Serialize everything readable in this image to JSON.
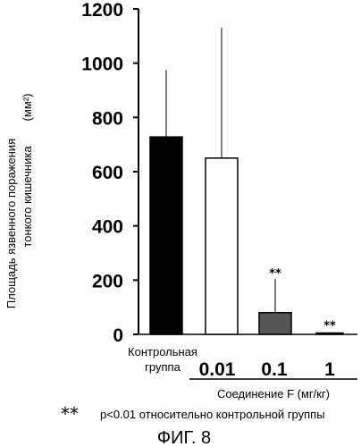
{
  "chart_data": {
    "type": "bar",
    "ylabel_line1": "Площадь язвенного поражения",
    "ylabel_line2": "тонкого кишечника",
    "ylabel_unit": "(мм²)",
    "ylim": [
      0,
      1200
    ],
    "yticks": [
      "0",
      "200",
      "400",
      "600",
      "800",
      "1000",
      "1200"
    ],
    "grid": false,
    "categories": [
      {
        "label_line1": "Контрольная",
        "label_line2": "группа"
      },
      {
        "label": "0.01"
      },
      {
        "label": "0.1"
      },
      {
        "label": "1"
      }
    ],
    "values": [
      728,
      650,
      80,
      5
    ],
    "error_upper": [
      975,
      1130,
      205,
      null
    ],
    "significance_marks": [
      "",
      "",
      "**",
      "**"
    ],
    "bar_fills": [
      "#000000",
      "#ffffff",
      "#555555",
      "#ffffff"
    ],
    "group_label": "Соединение F (мг/кг)",
    "footnote_symbol": "**",
    "footnote_text": "p<0.01 относительно контрольной группы",
    "figure_label": "ФИГ. 8"
  }
}
